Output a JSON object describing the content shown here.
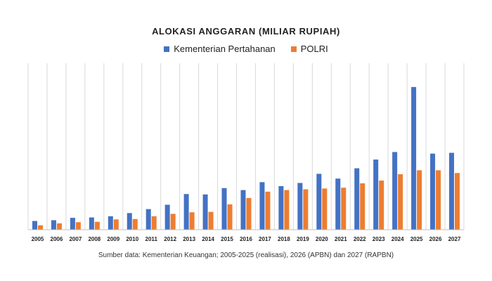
{
  "colors": {
    "series1": "#4472C4",
    "series2": "#ED7D31",
    "grid": "#D9D9D9",
    "axis": "#BFBFBF"
  },
  "source_text": "Sumber data: Kementerian Keuangan; 2005-2025 (realisasi), 2026 (APBN) dan 2027 (RAPBN)",
  "chart_data": {
    "type": "bar",
    "title": "ALOKASI ANGGARAN (MILIAR RUPIAH)",
    "categories": [
      "2005",
      "2006",
      "2007",
      "2008",
      "2009",
      "2010",
      "2011",
      "2012",
      "2013",
      "2014",
      "2015",
      "2016",
      "2017",
      "2018",
      "2019",
      "2020",
      "2021",
      "2022",
      "2023",
      "2024",
      "2025",
      "2026",
      "2027"
    ],
    "series": [
      {
        "name": "Kementerian Pertahanan",
        "values": [
          22000,
          24000,
          30000,
          31000,
          34000,
          42000,
          52000,
          63000,
          90000,
          89000,
          105000,
          100000,
          120000,
          110000,
          118000,
          141000,
          129000,
          155000,
          177000,
          196000,
          360000,
          192000,
          194000
        ]
      },
      {
        "name": "POLRI",
        "values": [
          11000,
          16000,
          19000,
          20000,
          26000,
          27000,
          34000,
          40000,
          44000,
          45000,
          64000,
          80000,
          96000,
          100000,
          102000,
          104000,
          106000,
          117000,
          124000,
          140000,
          150000,
          150000,
          143000
        ]
      }
    ],
    "xlabel": "",
    "ylabel": "",
    "ylim": [
      0,
      420000
    ],
    "grid": "vertical",
    "legend_position": "top"
  }
}
